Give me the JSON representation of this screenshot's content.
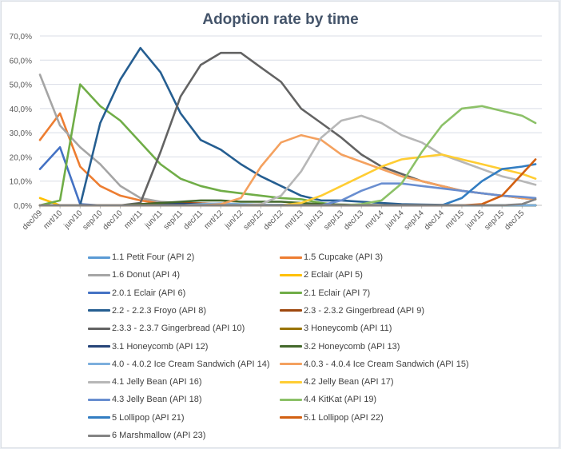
{
  "chart_data": {
    "type": "line",
    "title": "Adoption rate by time",
    "xlabel": "",
    "ylabel": "",
    "ylim": [
      0,
      70
    ],
    "y_ticks": [
      "0,0%",
      "10,0%",
      "20,0%",
      "30,0%",
      "40,0%",
      "50,0%",
      "60,0%",
      "70,0%"
    ],
    "y_tick_values": [
      0,
      10,
      20,
      30,
      40,
      50,
      60,
      70
    ],
    "x_tick_labels": [
      "dec/09",
      "mrt/10",
      "jun/10",
      "sep/10",
      "dec/10",
      "mrt/11",
      "jun/11",
      "sep/11",
      "dec/11",
      "mrt/12",
      "jun/12",
      "sep/12",
      "dec/12",
      "mrt/13",
      "jun/13",
      "sep/13",
      "dec/13",
      "mrt/14",
      "jun/14",
      "sep/14",
      "dec/14",
      "mrt/15",
      "jun/15",
      "sep/15",
      "dec/15"
    ],
    "x_unit": "months since dec/09 (quarterly samples)",
    "x": [
      0,
      3,
      6,
      9,
      12,
      15,
      18,
      21,
      24,
      27,
      30,
      33,
      36,
      39,
      42,
      45,
      48,
      51,
      54,
      57,
      60,
      63,
      66,
      69,
      72,
      74
    ],
    "grid": true,
    "legend_position": "bottom",
    "series": [
      {
        "name": "1.1 Petit Four (API 2)",
        "color": "#5b9bd5",
        "values": [
          0,
          0,
          0,
          0,
          0,
          0,
          0,
          0,
          0,
          0,
          0,
          0,
          0,
          0,
          0,
          0,
          0,
          0,
          0,
          0,
          0,
          0,
          0,
          0,
          0,
          0
        ]
      },
      {
        "name": "1.5 Cupcake (API 3)",
        "color": "#ed7d31",
        "values": [
          27,
          38,
          16,
          8,
          4,
          2,
          1,
          0.5,
          0.3,
          0.2,
          0,
          0,
          0,
          0,
          0,
          0,
          0,
          0,
          0,
          0,
          0,
          0,
          0,
          0,
          0,
          0
        ]
      },
      {
        "name": "1.6 Donut (API 4)",
        "color": "#a5a5a5",
        "values": [
          54,
          33,
          24,
          17,
          8,
          3,
          1.5,
          1,
          0.5,
          0.3,
          0,
          0,
          0,
          0,
          0,
          0,
          0,
          0,
          0,
          0,
          0,
          0,
          0,
          0,
          0,
          0
        ]
      },
      {
        "name": "2 Eclair (API 5)",
        "color": "#ffc000",
        "values": [
          3,
          0,
          0,
          0,
          0,
          0,
          0,
          0,
          0,
          0,
          0,
          0,
          0,
          0,
          0,
          0,
          0,
          0,
          0,
          0,
          0,
          0,
          0,
          0,
          0,
          0
        ]
      },
      {
        "name": "2.0.1 Eclair (API 6)",
        "color": "#4472c4",
        "values": [
          15,
          24,
          0.5,
          0,
          0,
          0,
          0,
          0,
          0,
          0,
          0,
          0,
          0,
          0,
          0,
          0,
          0,
          0,
          0,
          0,
          0,
          0,
          0,
          0,
          0,
          0
        ]
      },
      {
        "name": "2.1 Eclair (API 7)",
        "color": "#70ad47",
        "values": [
          0,
          2,
          50,
          41,
          35,
          26,
          17,
          11,
          8,
          6,
          5,
          4,
          3,
          2.5,
          1,
          0,
          0,
          0,
          0,
          0,
          0,
          0,
          0,
          0,
          0,
          0
        ]
      },
      {
        "name": "2.2 - 2.2.3 Froyo (API 8)",
        "color": "#255e91",
        "values": [
          0,
          0,
          0,
          34,
          52,
          65,
          55,
          38,
          27,
          23,
          17,
          12,
          8,
          4,
          2,
          2,
          1.5,
          1,
          0.5,
          0.3,
          0.2,
          0,
          0,
          0,
          0,
          0
        ]
      },
      {
        "name": "2.3 - 2.3.2 Gingerbread (API 9)",
        "color": "#9e480e",
        "values": [
          0,
          0,
          0,
          0,
          0,
          0.5,
          1,
          1,
          0.8,
          0.5,
          0.3,
          0.2,
          0.1,
          0,
          0,
          0,
          0,
          0,
          0,
          0,
          0,
          0,
          0,
          0,
          0,
          0
        ]
      },
      {
        "name": "2.3.3 - 2.3.7 Gingerbread (API 10)",
        "color": "#636363",
        "values": [
          0,
          0,
          0,
          0,
          0,
          1,
          22,
          45,
          58,
          63,
          63,
          57,
          51,
          40,
          34,
          28,
          21,
          16,
          13,
          10,
          8,
          6,
          5,
          4,
          3,
          2.5
        ]
      },
      {
        "name": "3 Honeycomb (API 11)",
        "color": "#997300",
        "values": [
          0,
          0,
          0,
          0,
          0,
          0,
          0.2,
          0.2,
          0.1,
          0,
          0,
          0,
          0,
          0,
          0,
          0,
          0,
          0,
          0,
          0,
          0,
          0,
          0,
          0,
          0,
          0
        ]
      },
      {
        "name": "3.1 Honeycomb (API 12)",
        "color": "#264478",
        "values": [
          0,
          0,
          0,
          0,
          0,
          0.3,
          0.6,
          0.6,
          0.5,
          0.4,
          0.3,
          0.2,
          0.2,
          0.1,
          0,
          0,
          0,
          0,
          0,
          0,
          0,
          0,
          0,
          0,
          0,
          0
        ]
      },
      {
        "name": "3.2 Honeycomb (API 13)",
        "color": "#43682b",
        "values": [
          0,
          0,
          0,
          0,
          0,
          0.5,
          1,
          1.5,
          2,
          2,
          1.5,
          1.5,
          1.5,
          1,
          0.5,
          0.3,
          0.2,
          0.1,
          0,
          0,
          0,
          0,
          0,
          0,
          0,
          0
        ]
      },
      {
        "name": "4.0 - 4.0.2 Ice Cream Sandwich (API 14)",
        "color": "#7cafdd",
        "values": [
          0,
          0,
          0,
          0,
          0,
          0,
          0,
          0,
          0.5,
          0.8,
          0.5,
          0.3,
          0.2,
          0.1,
          0,
          0,
          0,
          0,
          0,
          0,
          0,
          0,
          0,
          0,
          0,
          0
        ]
      },
      {
        "name": "4.0.3 - 4.0.4 Ice Cream Sandwich (API 15)",
        "color": "#f4a15f",
        "values": [
          0,
          0,
          0,
          0,
          0,
          0,
          0,
          0,
          0,
          0.5,
          3,
          16,
          26,
          29,
          27,
          21,
          18,
          15,
          12,
          10,
          8,
          6,
          5,
          4,
          3,
          2.5
        ]
      },
      {
        "name": "4.1 Jelly Bean (API 16)",
        "color": "#b7b7b7",
        "values": [
          0,
          0,
          0,
          0,
          0,
          0,
          0,
          0,
          0,
          0,
          0,
          0.5,
          4,
          14,
          28,
          35,
          37,
          34,
          29,
          26,
          21,
          18,
          15,
          12,
          10,
          8.5
        ]
      },
      {
        "name": "4.2 Jelly Bean (API 17)",
        "color": "#ffcd33",
        "values": [
          0,
          0,
          0,
          0,
          0,
          0,
          0,
          0,
          0,
          0,
          0,
          0,
          0,
          1,
          4,
          8,
          12,
          16,
          19,
          20,
          21,
          19,
          17,
          15,
          13,
          11
        ]
      },
      {
        "name": "4.3 Jelly Bean (API 18)",
        "color": "#698ed0",
        "values": [
          0,
          0,
          0,
          0,
          0,
          0,
          0,
          0,
          0,
          0,
          0,
          0,
          0,
          0,
          0,
          2,
          6,
          9,
          9,
          8,
          7,
          6,
          5,
          4,
          3.5,
          3
        ]
      },
      {
        "name": "4.4 KitKat (API 19)",
        "color": "#8cc168",
        "values": [
          0,
          0,
          0,
          0,
          0,
          0,
          0,
          0,
          0,
          0,
          0,
          0,
          0,
          0,
          0,
          0,
          0.5,
          2,
          9,
          22,
          33,
          40,
          41,
          39,
          37,
          34
        ]
      },
      {
        "name": "5 Lollipop (API 21)",
        "color": "#327dc2",
        "values": [
          0,
          0,
          0,
          0,
          0,
          0,
          0,
          0,
          0,
          0,
          0,
          0,
          0,
          0,
          0,
          0,
          0,
          0,
          0,
          0,
          0,
          3,
          10,
          15,
          16,
          17
        ]
      },
      {
        "name": "5.1 Lollipop (API 22)",
        "color": "#d26012",
        "values": [
          0,
          0,
          0,
          0,
          0,
          0,
          0,
          0,
          0,
          0,
          0,
          0,
          0,
          0,
          0,
          0,
          0,
          0,
          0,
          0,
          0,
          0,
          0.5,
          4,
          13,
          19
        ]
      },
      {
        "name": "6 Marshmallow (API 23)",
        "color": "#848484",
        "values": [
          0,
          0,
          0,
          0,
          0,
          0,
          0,
          0,
          0,
          0,
          0,
          0,
          0,
          0,
          0,
          0,
          0,
          0,
          0,
          0,
          0,
          0,
          0,
          0,
          0.5,
          2.5
        ]
      }
    ]
  }
}
